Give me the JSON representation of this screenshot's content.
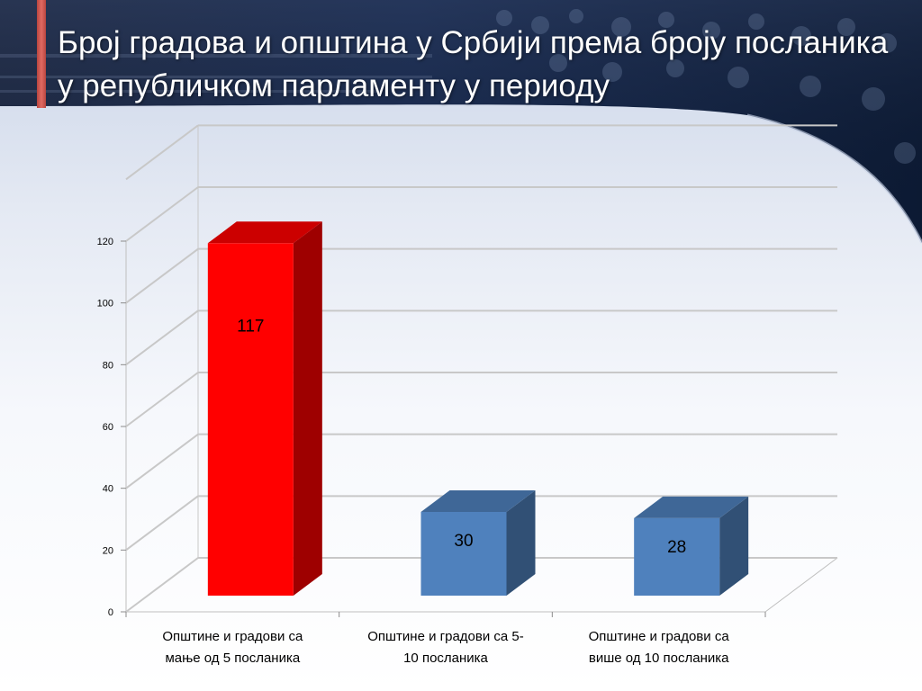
{
  "slide": {
    "title": "Број градова и општина у Србији према броју посланика у републичком парламенту у периоду"
  },
  "colors": {
    "header_dark": "#0f1e3c",
    "accent": "#d65c55",
    "bar_red": "#ff0000",
    "bar_blue": "#4f81bd"
  },
  "chart_data": {
    "type": "bar",
    "three_d": true,
    "categories": [
      [
        "Општине и градови са",
        "мање од 5 посланика"
      ],
      [
        "Општине и градови са 5-",
        "10 посланика"
      ],
      [
        "Општине и градови са",
        "више од 10 посланика"
      ]
    ],
    "values": [
      117,
      30,
      28
    ],
    "bar_colors": [
      "#ff0000",
      "#4f81bd",
      "#4f81bd"
    ],
    "data_labels": [
      "117",
      "30",
      "28"
    ],
    "yticks": [
      "0",
      "20",
      "40",
      "60",
      "80",
      "100",
      "120"
    ],
    "ylim": [
      0,
      120
    ],
    "grid": true,
    "legend": "none"
  }
}
